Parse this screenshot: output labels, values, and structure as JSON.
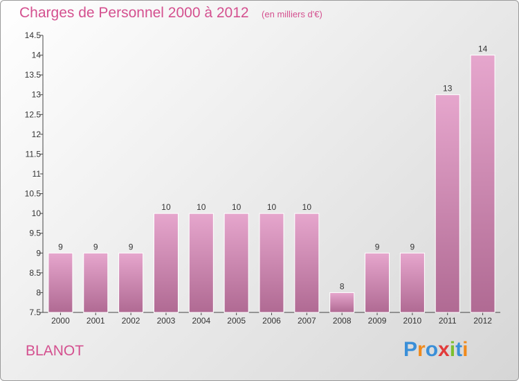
{
  "header": {
    "title": "Charges de Personnel 2000 à 2012",
    "subtitle": "(en milliers d'€)"
  },
  "footer": {
    "commune": "BLANOT",
    "brand": "Proxiti"
  },
  "colors": {
    "accent": "#d4508f",
    "bar_top": "#e6a6cd",
    "bar_bottom": "#b06a93",
    "brand_letters": [
      "#3a8fd8",
      "#f08a1c",
      "#3a8fd8",
      "#e23b3b",
      "#7cbf2e",
      "#3a8fd8",
      "#f08a1c"
    ]
  },
  "chart_data": {
    "type": "bar",
    "title": "Charges de Personnel 2000 à 2012",
    "subtitle": "(en milliers d'€)",
    "categories": [
      "2000",
      "2001",
      "2002",
      "2003",
      "2004",
      "2005",
      "2006",
      "2007",
      "2008",
      "2009",
      "2010",
      "2011",
      "2012"
    ],
    "values": [
      9,
      9,
      9,
      10,
      10,
      10,
      10,
      10,
      8,
      9,
      9,
      13,
      14
    ],
    "value_labels": [
      "9",
      "9",
      "9",
      "10",
      "10",
      "10",
      "10",
      "10",
      "8",
      "9",
      "9",
      "13",
      "14"
    ],
    "ylim": [
      7.5,
      14.5
    ],
    "yticks": [
      "7.5",
      "8",
      "8.5",
      "9",
      "9.5",
      "10",
      "10.5",
      "11",
      "11.5",
      "12",
      "12.5",
      "13",
      "13.5",
      "14",
      "14.5"
    ],
    "grid": false,
    "legend": "none"
  }
}
